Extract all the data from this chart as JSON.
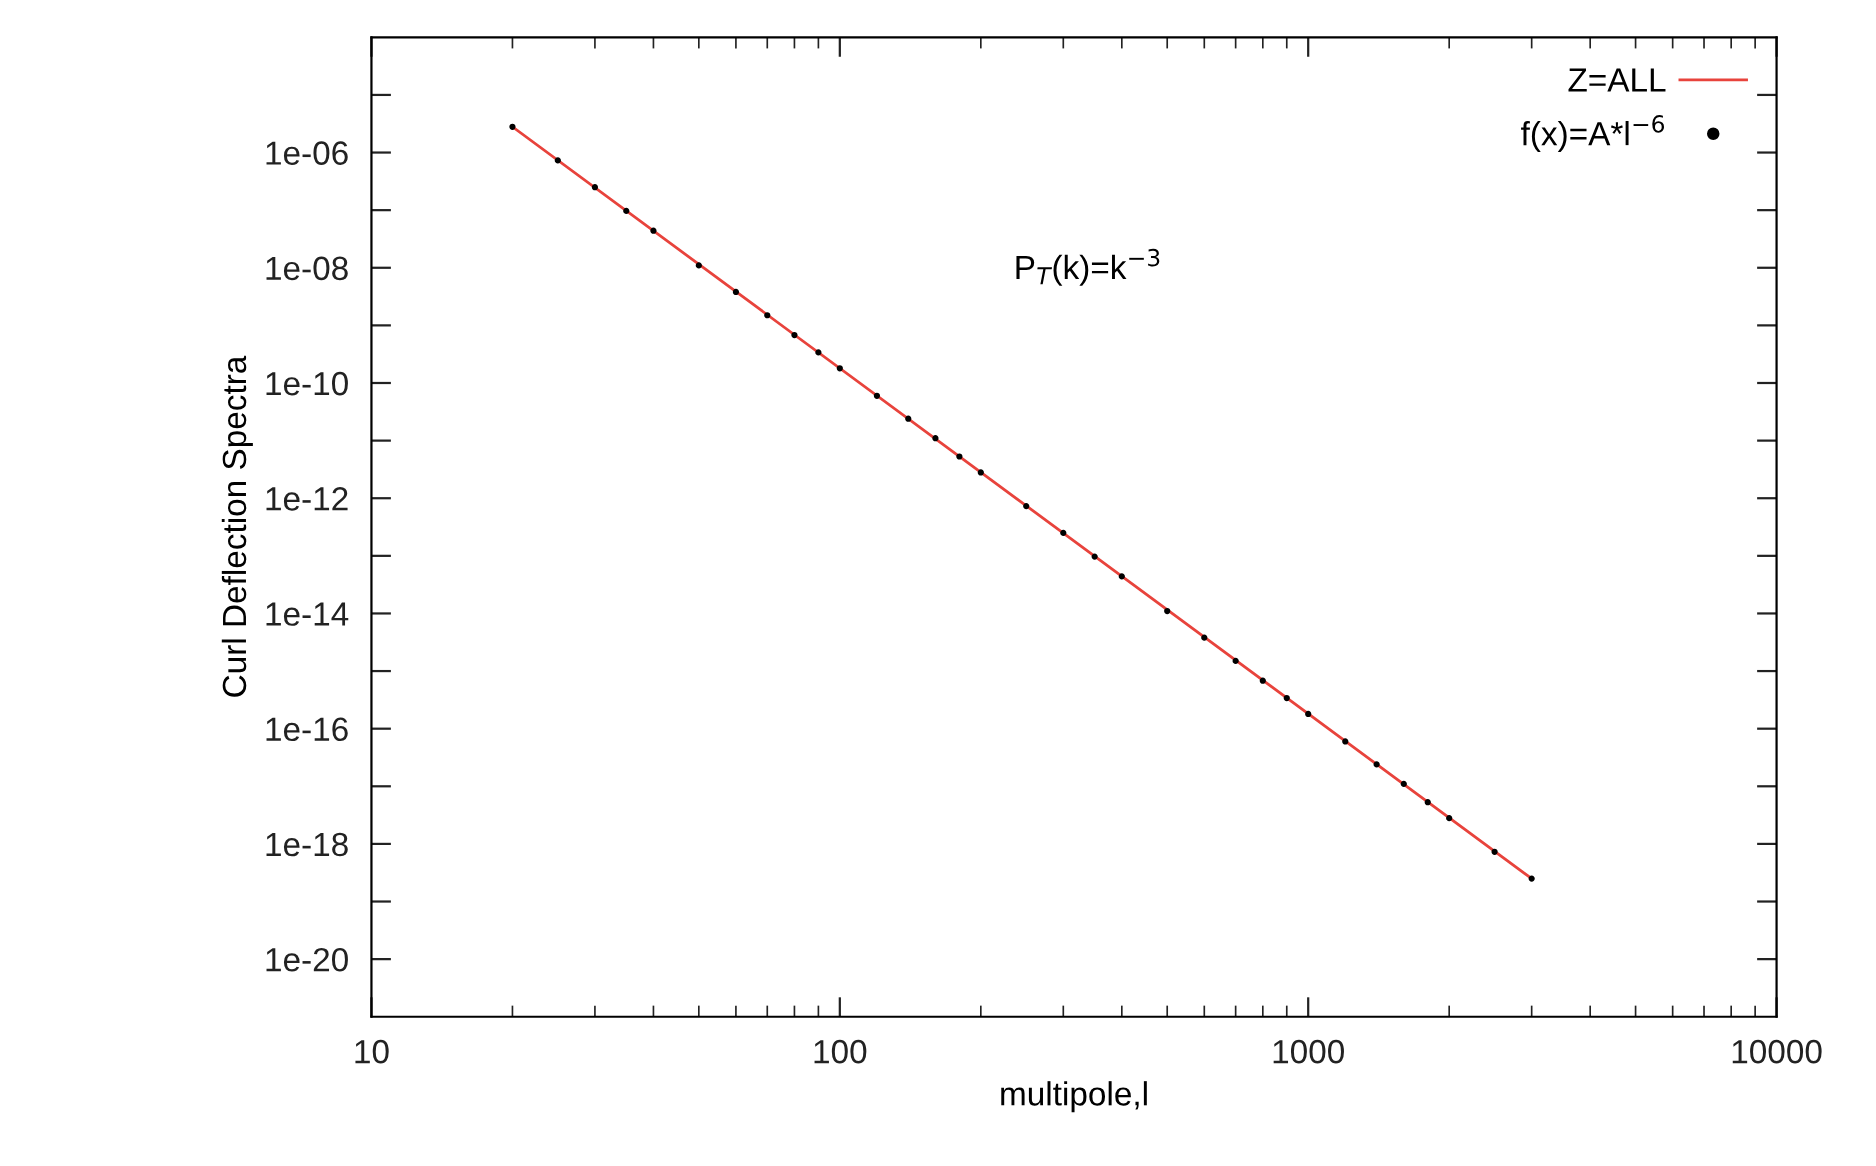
{
  "chart_data": {
    "type": "line",
    "xlabel": "multipole,l",
    "ylabel": "Curl Deflection Spectra",
    "series": [
      {
        "name": "Z=ALL",
        "color": "#e8433c",
        "marker": "none",
        "x": [
          20,
          3000
        ],
        "values": [
          2.8e-06,
          2.5e-19
        ]
      },
      {
        "name": "f(x)=A*l$^{−6}$",
        "color": "#000000",
        "type": "scatter",
        "marker": "circle",
        "x": [
          20,
          25,
          30,
          35,
          40,
          50,
          60,
          70,
          80,
          90,
          100,
          120,
          140,
          160,
          180,
          200,
          250,
          300,
          350,
          400,
          500,
          600,
          700,
          800,
          900,
          1000,
          1200,
          1400,
          1600,
          1800,
          2000,
          2500,
          3000
        ],
        "values": [
          2.8e-06,
          7.3e-07,
          2.5e-07,
          9.7e-08,
          4.4e-08,
          1.1e-08,
          3.8e-09,
          1.5e-09,
          6.8e-10,
          3.4e-10,
          1.8e-10,
          6e-11,
          2.4e-11,
          1.1e-11,
          5.3e-12,
          2.8e-12,
          7.3e-13,
          2.5e-13,
          9.7e-14,
          4.4e-14,
          1.1e-14,
          3.8e-15,
          1.5e-15,
          6.8e-16,
          3.4e-16,
          1.8e-16,
          6e-17,
          2.4e-17,
          1.1e-17,
          5.3e-18,
          2.8e-18,
          7.3e-19,
          2.5e-19
        ]
      }
    ],
    "annotations": [
      "P$_{T}$(k)=k$^{−3}$"
    ],
    "log": "xy",
    "xlim": [
      10,
      10000
    ],
    "xticks": [
      10,
      100,
      1000,
      10000
    ],
    "ylim": [
      1e-21,
      0.0001
    ],
    "yticks": [
      {
        "value": 1e-05,
        "label": null
      },
      {
        "value": 1e-06,
        "label": "1e-06"
      },
      {
        "value": 1e-07,
        "label": null
      },
      {
        "value": 1e-08,
        "label": "1e-08"
      },
      {
        "value": 1e-09,
        "label": null
      },
      {
        "value": 1e-10,
        "label": "1e-10"
      },
      {
        "value": 1e-11,
        "label": null
      },
      {
        "value": 1e-12,
        "label": "1e-12"
      },
      {
        "value": 1e-13,
        "label": null
      },
      {
        "value": 1e-14,
        "label": "1e-14"
      },
      {
        "value": 1e-15,
        "label": null
      },
      {
        "value": 1e-16,
        "label": "1e-16"
      },
      {
        "value": 1e-17,
        "label": null
      },
      {
        "value": 1e-18,
        "label": "1e-18"
      },
      {
        "value": 1e-19,
        "label": null
      },
      {
        "value": 1e-20,
        "label": "1e-20"
      }
    ],
    "grid": false,
    "legend": "top right"
  }
}
